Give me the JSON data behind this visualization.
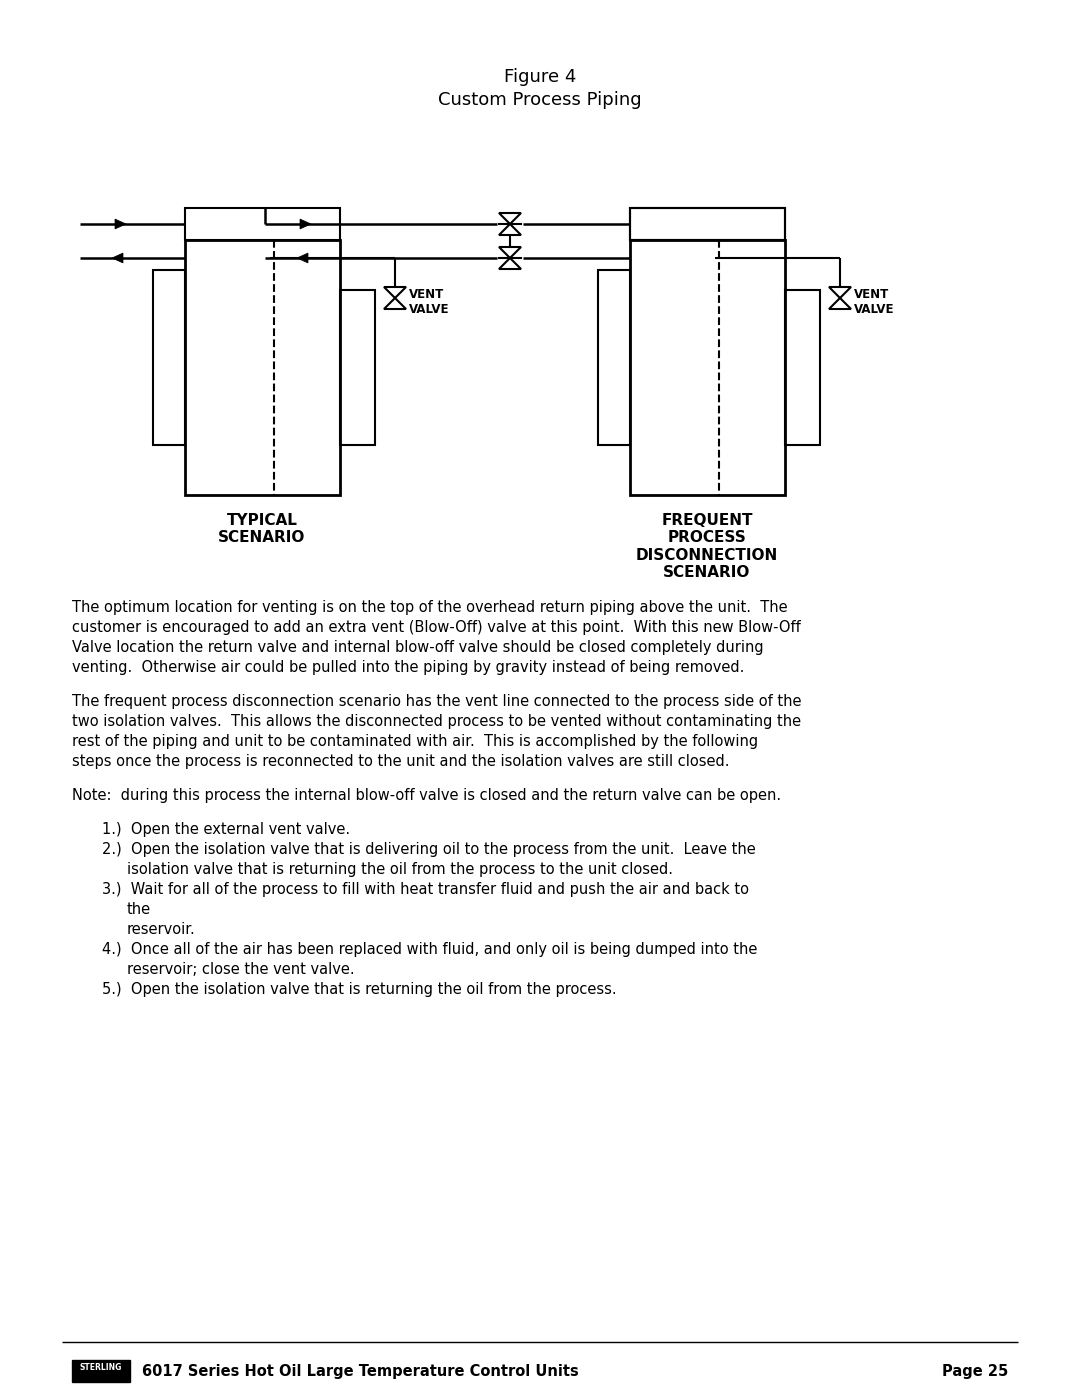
{
  "title_line1": "Figure 4",
  "title_line2": "Custom Process Piping",
  "label_typical": "TYPICAL\nSCENARIO",
  "label_frequent": "FREQUENT\nPROCESS\nDISCONNECTION\nSCENARIO",
  "vent_label": "VENT\nVALVE",
  "body_paragraphs": [
    "The optimum location for venting is on the top of the overhead return piping above the unit.  The customer is encouraged to add an extra vent (Blow-Off) valve at this point.  With this new Blow-Off Valve location the return valve and internal blow-off valve should be closed completely during venting.  Otherwise air could be pulled into the piping by gravity instead of being removed.",
    "The frequent process disconnection scenario has the vent line connected to the process side of the two isolation valves.  This allows the disconnected process to be vented without contaminating the rest of the piping and unit to be contaminated with air.  This is accomplished by the following steps once the process is reconnected to the unit and the isolation valves are still closed.",
    "Note:  during this process the internal blow-off valve is closed and the return valve can be open."
  ],
  "list_items": [
    "1.)  Open the external vent valve.",
    "2.)  Open the isolation valve that is delivering oil to the process from the unit.  Leave the\n       isolation valve that is returning the oil from the process to the unit closed.",
    "3.)  Wait for all of the process to fill with heat transfer fluid and push the air and back to the\n       reservoir.",
    "4.)  Once all of the air has been replaced with fluid, and only oil is being dumped into the\n       reservoir; close the vent valve.",
    "5.)  Open the isolation valve that is returning the oil from the process."
  ],
  "footer_text": "6017 Series Hot Oil Large Temperature Control Units",
  "footer_page": "Page 25",
  "bg_color": "#ffffff",
  "text_color": "#000000",
  "line_color": "#000000"
}
